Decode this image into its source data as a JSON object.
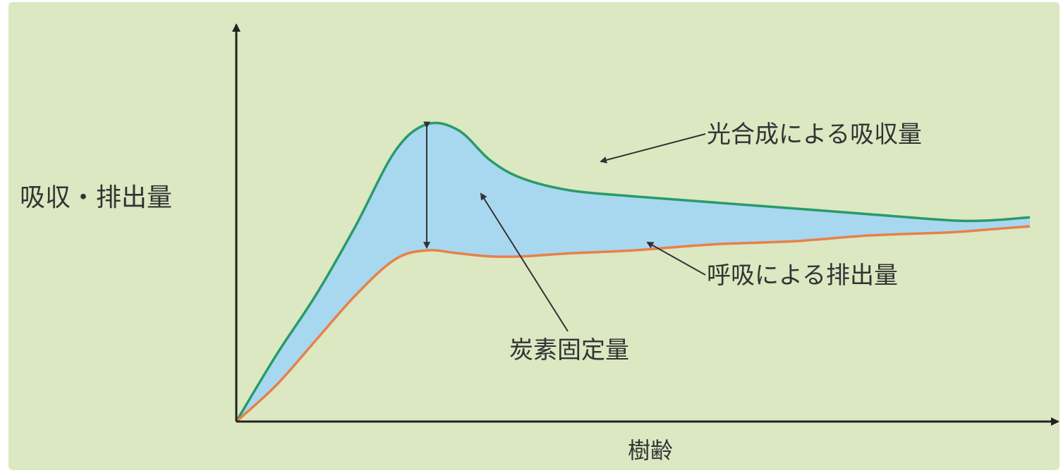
{
  "chart_data": {
    "type": "area",
    "title": "",
    "xlabel": "樹齢",
    "ylabel": "吸収・排出量",
    "grid": false,
    "legend": "none",
    "series": [
      {
        "name": "光合成による吸収量",
        "color": "#2a9a6a",
        "x": [
          0,
          0.05,
          0.1,
          0.15,
          0.2,
          0.24,
          0.28,
          0.32,
          0.36,
          0.42,
          0.5,
          0.6,
          0.7,
          0.8,
          0.9,
          0.95,
          1.0
        ],
        "values": [
          0,
          0.22,
          0.42,
          0.65,
          0.9,
          0.99,
          0.97,
          0.87,
          0.81,
          0.77,
          0.75,
          0.73,
          0.71,
          0.69,
          0.67,
          0.67,
          0.68
        ]
      },
      {
        "name": "呼吸による排出量",
        "color": "#e8804a",
        "x": [
          0,
          0.05,
          0.1,
          0.15,
          0.2,
          0.24,
          0.28,
          0.32,
          0.36,
          0.42,
          0.5,
          0.6,
          0.7,
          0.8,
          0.9,
          0.95,
          1.0
        ],
        "values": [
          0,
          0.12,
          0.27,
          0.42,
          0.54,
          0.57,
          0.56,
          0.55,
          0.55,
          0.56,
          0.57,
          0.59,
          0.6,
          0.62,
          0.63,
          0.64,
          0.65
        ]
      }
    ],
    "fill_between": {
      "color": "#a8d8f0"
    },
    "annotations": [
      {
        "text": "光合成による吸収量"
      },
      {
        "text": "呼吸による排出量"
      },
      {
        "text": "炭素固定量"
      }
    ],
    "background": "#dbe8c2"
  }
}
